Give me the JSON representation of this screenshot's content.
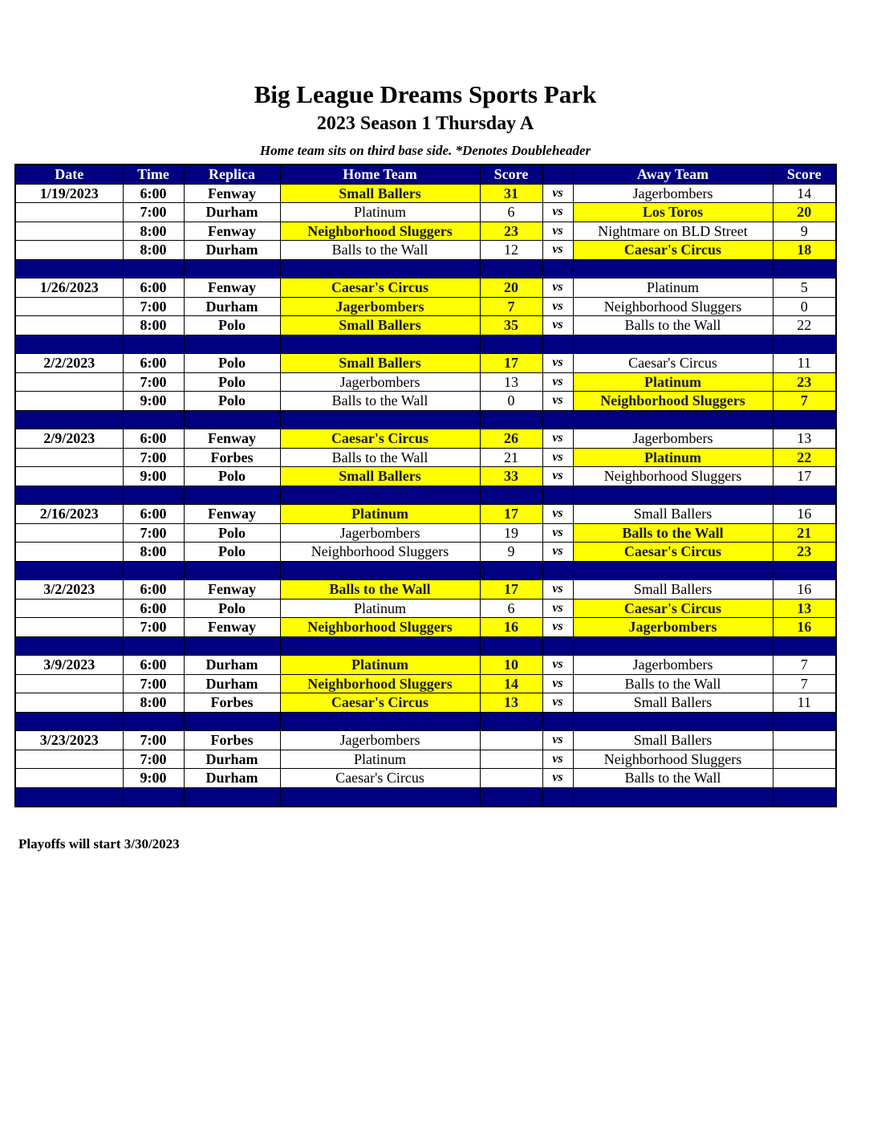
{
  "header": {
    "title": "Big League Dreams Sports Park",
    "subtitle": "2023 Season 1 Thursday A",
    "note": "Home team sits on third base side.  *Denotes Doubleheader"
  },
  "colors": {
    "header_bg": "#000080",
    "winner_highlight": "#ffff00"
  },
  "table": {
    "columns": [
      "Date",
      "Time",
      "Replica",
      "Home Team",
      "Score",
      "",
      "Away Team",
      "Score"
    ],
    "vs_label": "vs",
    "weeks": [
      {
        "date": "1/19/2023",
        "games": [
          {
            "time": "6:00",
            "replica": "Fenway",
            "home": "Small Ballers",
            "home_score": "31",
            "away": "Jagerbombers",
            "away_score": "14",
            "winner": "home"
          },
          {
            "time": "7:00",
            "replica": "Durham",
            "home": "Platinum",
            "home_score": "6",
            "away": "Los Toros",
            "away_score": "20",
            "winner": "away"
          },
          {
            "time": "8:00",
            "replica": "Fenway",
            "home": "Neighborhood Sluggers",
            "home_score": "23",
            "away": "Nightmare on BLD Street",
            "away_score": "9",
            "winner": "home"
          },
          {
            "time": "8:00",
            "replica": "Durham",
            "home": "Balls to the Wall",
            "home_score": "12",
            "away": "Caesar's Circus",
            "away_score": "18",
            "winner": "away"
          }
        ]
      },
      {
        "date": "1/26/2023",
        "games": [
          {
            "time": "6:00",
            "replica": "Fenway",
            "home": "Caesar's Circus",
            "home_score": "20",
            "away": "Platinum",
            "away_score": "5",
            "winner": "home"
          },
          {
            "time": "7:00",
            "replica": "Durham",
            "home": "Jagerbombers",
            "home_score": "7",
            "away": "Neighborhood Sluggers",
            "away_score": "0",
            "winner": "home"
          },
          {
            "time": "8:00",
            "replica": "Polo",
            "home": "Small Ballers",
            "home_score": "35",
            "away": "Balls to the Wall",
            "away_score": "22",
            "winner": "home"
          }
        ]
      },
      {
        "date": "2/2/2023",
        "games": [
          {
            "time": "6:00",
            "replica": "Polo",
            "home": "Small Ballers",
            "home_score": "17",
            "away": "Caesar's Circus",
            "away_score": "11",
            "winner": "home"
          },
          {
            "time": "7:00",
            "replica": "Polo",
            "home": "Jagerbombers",
            "home_score": "13",
            "away": "Platinum",
            "away_score": "23",
            "winner": "away"
          },
          {
            "time": "9:00",
            "replica": "Polo",
            "home": "Balls to the Wall",
            "home_score": "0",
            "away": "Neighborhood Sluggers",
            "away_score": "7",
            "winner": "away"
          }
        ]
      },
      {
        "date": "2/9/2023",
        "games": [
          {
            "time": "6:00",
            "replica": "Fenway",
            "home": "Caesar's Circus",
            "home_score": "26",
            "away": "Jagerbombers",
            "away_score": "13",
            "winner": "home"
          },
          {
            "time": "7:00",
            "replica": "Forbes",
            "home": "Balls to the Wall",
            "home_score": "21",
            "away": "Platinum",
            "away_score": "22",
            "winner": "away"
          },
          {
            "time": "9:00",
            "replica": "Polo",
            "home": "Small Ballers",
            "home_score": "33",
            "away": "Neighborhood Sluggers",
            "away_score": "17",
            "winner": "home"
          }
        ]
      },
      {
        "date": "2/16/2023",
        "games": [
          {
            "time": "6:00",
            "replica": "Fenway",
            "home": "Platinum",
            "home_score": "17",
            "away": "Small Ballers",
            "away_score": "16",
            "winner": "home"
          },
          {
            "time": "7:00",
            "replica": "Polo",
            "home": "Jagerbombers",
            "home_score": "19",
            "away": "Balls to the Wall",
            "away_score": "21",
            "winner": "away"
          },
          {
            "time": "8:00",
            "replica": "Polo",
            "home": "Neighborhood Sluggers",
            "home_score": "9",
            "away": "Caesar's Circus",
            "away_score": "23",
            "winner": "away"
          }
        ]
      },
      {
        "date": "3/2/2023",
        "games": [
          {
            "time": "6:00",
            "replica": "Fenway",
            "home": "Balls to the Wall",
            "home_score": "17",
            "away": "Small Ballers",
            "away_score": "16",
            "winner": "home"
          },
          {
            "time": "6:00",
            "replica": "Polo",
            "home": "Platinum",
            "home_score": "6",
            "away": "Caesar's Circus",
            "away_score": "13",
            "winner": "away"
          },
          {
            "time": "7:00",
            "replica": "Fenway",
            "home": "Neighborhood Sluggers",
            "home_score": "16",
            "away": "Jagerbombers",
            "away_score": "16",
            "winner": "both"
          }
        ]
      },
      {
        "date": "3/9/2023",
        "games": [
          {
            "time": "6:00",
            "replica": "Durham",
            "home": "Platinum",
            "home_score": "10",
            "away": "Jagerbombers",
            "away_score": "7",
            "winner": "home"
          },
          {
            "time": "7:00",
            "replica": "Durham",
            "home": "Neighborhood Sluggers",
            "home_score": "14",
            "away": "Balls to the Wall",
            "away_score": "7",
            "winner": "home"
          },
          {
            "time": "8:00",
            "replica": "Forbes",
            "home": "Caesar's Circus",
            "home_score": "13",
            "away": "Small Ballers",
            "away_score": "11",
            "winner": "home"
          }
        ]
      },
      {
        "date": "3/23/2023",
        "games": [
          {
            "time": "7:00",
            "replica": "Forbes",
            "home": "Jagerbombers",
            "home_score": "",
            "away": "Small Ballers",
            "away_score": "",
            "winner": ""
          },
          {
            "time": "7:00",
            "replica": "Durham",
            "home": "Platinum",
            "home_score": "",
            "away": "Neighborhood Sluggers",
            "away_score": "",
            "winner": ""
          },
          {
            "time": "9:00",
            "replica": "Durham",
            "home": "Caesar's Circus",
            "home_score": "",
            "away": "Balls to the Wall",
            "away_score": "",
            "winner": ""
          }
        ]
      }
    ]
  },
  "footer": "Playoffs will start 3/30/2023"
}
